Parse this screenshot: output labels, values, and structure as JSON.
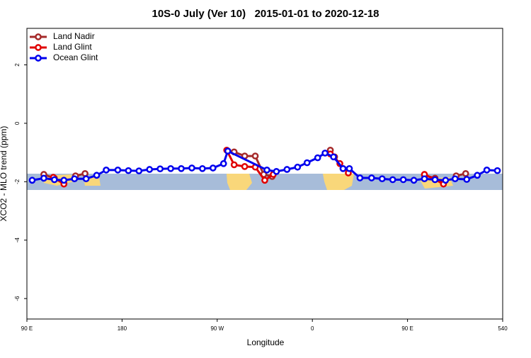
{
  "chart_data": {
    "type": "line",
    "title": "10S-0 July (Ver 10)   2015-01-01 to 2020-12-18",
    "xlabel": "Longitude",
    "ylabel": "XCO2 - MLO trend (ppm)",
    "xlim": [
      90,
      540
    ],
    "ylim": [
      -6.7,
      3.25
    ],
    "xticks": [
      {
        "value": 90,
        "label": "90 E"
      },
      180,
      {
        "value": 270,
        "label": "90 W"
      },
      {
        "value": 360,
        "label": "0"
      },
      {
        "value": 450,
        "label": "90 E"
      },
      540
    ],
    "yticks": [
      2,
      0,
      -2,
      -4,
      -6
    ],
    "legend": "top-left",
    "series": [
      {
        "name": "Land Nadir",
        "color": "#a52a2a",
        "x": [
          106,
          116,
          125,
          null,
          136,
          145,
          null,
          280,
          286,
          296,
          306,
          314,
          322,
          null,
          377,
          381,
          389,
          null,
          466,
          476,
          484,
          null,
          496,
          505
        ],
        "values": [
          -1.75,
          -1.88,
          -2.05,
          null,
          -1.8,
          -1.72,
          null,
          -0.95,
          -0.98,
          -1.12,
          -1.12,
          -1.75,
          -1.82,
          null,
          -0.92,
          -1.15,
          -1.55,
          null,
          -1.78,
          -1.88,
          -2.05,
          null,
          -1.8,
          -1.72
        ]
      },
      {
        "name": "Land Glint",
        "color": "#e00000",
        "x": [
          115,
          125,
          null,
          279,
          286,
          296,
          306,
          315,
          323,
          null,
          377,
          386,
          394,
          null,
          466,
          476,
          484
        ],
        "values": [
          -1.85,
          -2.08,
          null,
          -0.92,
          -1.42,
          -1.48,
          -1.5,
          -1.95,
          -1.75,
          null,
          -1.05,
          -1.38,
          -1.7,
          null,
          -1.75,
          -1.92,
          -2.08
        ]
      },
      {
        "name": "Ocean Glint",
        "color": "#0000ee",
        "x": [
          95,
          106,
          116,
          125,
          135,
          146,
          156,
          165,
          176,
          186,
          196,
          206,
          216,
          226,
          236,
          246,
          256,
          266,
          276,
          280,
          317,
          326,
          336,
          346,
          355,
          365,
          372,
          380,
          389,
          395,
          405,
          416,
          426,
          436,
          446,
          456,
          466,
          476,
          486,
          495,
          506,
          516,
          525,
          535
        ],
        "values": [
          -1.95,
          -1.88,
          -1.93,
          -1.95,
          -1.9,
          -1.9,
          -1.78,
          -1.6,
          -1.6,
          -1.62,
          -1.63,
          -1.58,
          -1.56,
          -1.55,
          -1.55,
          -1.53,
          -1.55,
          -1.53,
          -1.38,
          -0.95,
          -1.6,
          -1.65,
          -1.58,
          -1.5,
          -1.35,
          -1.18,
          -1.02,
          -1.15,
          -1.55,
          -1.55,
          -1.87,
          -1.87,
          -1.9,
          -1.93,
          -1.93,
          -1.95,
          -1.9,
          -1.93,
          -1.95,
          -1.9,
          -1.92,
          -1.78,
          -1.6,
          -1.62
        ]
      }
    ]
  }
}
